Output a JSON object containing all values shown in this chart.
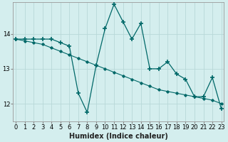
{
  "xlabel": "Humidex (Indice chaleur)",
  "background_color": "#d4eeee",
  "grid_color": "#b8d8d8",
  "line_color": "#006868",
  "x_data": [
    0,
    1,
    2,
    3,
    4,
    5,
    6,
    7,
    8,
    9,
    10,
    11,
    12,
    13,
    14,
    15,
    16,
    17,
    18,
    19,
    20,
    21,
    22,
    23
  ],
  "y_main": [
    13.85,
    13.85,
    13.85,
    13.85,
    13.85,
    13.75,
    13.65,
    12.3,
    11.75,
    13.1,
    14.15,
    14.85,
    14.35,
    13.85,
    14.3,
    13.0,
    13.0,
    13.2,
    12.85,
    12.7,
    12.2,
    12.2,
    12.75,
    11.85
  ],
  "y_trend": [
    13.85,
    13.8,
    13.75,
    13.7,
    13.6,
    13.5,
    13.4,
    13.3,
    13.2,
    13.1,
    13.0,
    12.9,
    12.8,
    12.7,
    12.6,
    12.5,
    12.4,
    12.35,
    12.3,
    12.25,
    12.2,
    12.15,
    12.1,
    12.0
  ],
  "ylim": [
    11.5,
    14.9
  ],
  "yticks": [
    12,
    13,
    14
  ],
  "xlim": [
    -0.3,
    23.3
  ],
  "xtick_labels": [
    "0",
    "1",
    "2",
    "3",
    "4",
    "5",
    "6",
    "7",
    "8",
    "9",
    "10",
    "11",
    "12",
    "13",
    "14",
    "15",
    "16",
    "17",
    "18",
    "19",
    "20",
    "21",
    "22",
    "23"
  ]
}
